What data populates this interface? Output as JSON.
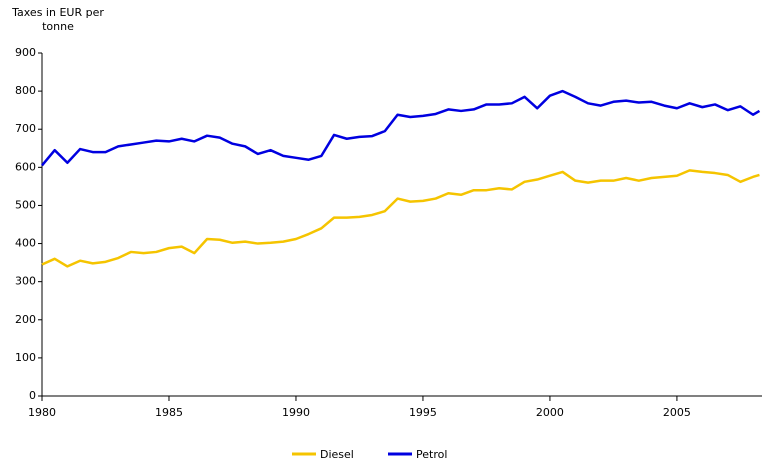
{
  "chart_data": {
    "type": "line",
    "y_label": "Taxes in EUR per tonne",
    "x": [
      1980,
      1980.5,
      1981,
      1981.5,
      1982,
      1982.5,
      1983,
      1983.5,
      1984,
      1984.5,
      1985,
      1985.5,
      1986,
      1986.5,
      1987,
      1987.5,
      1988,
      1988.5,
      1989,
      1989.5,
      1990,
      1990.5,
      1991,
      1991.5,
      1992,
      1992.5,
      1993,
      1993.5,
      1994,
      1994.5,
      1995,
      1995.5,
      1996,
      1996.5,
      1997,
      1997.5,
      1998,
      1998.5,
      1999,
      1999.5,
      2000,
      2000.5,
      2001,
      2001.5,
      2002,
      2002.5,
      2003,
      2003.5,
      2004,
      2004.5,
      2005,
      2005.5,
      2006,
      2006.5,
      2007,
      2007.5,
      2008,
      2008.25
    ],
    "series": [
      {
        "name": "Diesel",
        "color": "#f5c400",
        "values": [
          345,
          360,
          340,
          355,
          348,
          352,
          362,
          378,
          375,
          378,
          388,
          392,
          375,
          412,
          410,
          402,
          405,
          400,
          402,
          405,
          412,
          425,
          440,
          468,
          468,
          470,
          475,
          485,
          518,
          510,
          512,
          518,
          532,
          528,
          540,
          540,
          545,
          542,
          562,
          568,
          578,
          588,
          565,
          560,
          565,
          565,
          572,
          565,
          572,
          575,
          578,
          592,
          588,
          585,
          580,
          562,
          575,
          580
        ]
      },
      {
        "name": "Petrol",
        "color": "#0000e0",
        "values": [
          605,
          645,
          612,
          648,
          640,
          640,
          655,
          660,
          665,
          670,
          668,
          675,
          668,
          683,
          678,
          662,
          655,
          635,
          645,
          630,
          625,
          620,
          630,
          685,
          675,
          680,
          682,
          695,
          738,
          732,
          735,
          740,
          752,
          748,
          752,
          765,
          765,
          768,
          785,
          755,
          788,
          800,
          785,
          768,
          762,
          772,
          775,
          770,
          772,
          762,
          755,
          768,
          758,
          765,
          750,
          760,
          738,
          748
        ]
      }
    ],
    "xlim": [
      1980,
      2008.35
    ],
    "xticks": [
      1980,
      1985,
      1990,
      1995,
      2000,
      2005
    ],
    "ylim": [
      0,
      900
    ],
    "yticks": [
      0,
      100,
      200,
      300,
      400,
      500,
      600,
      700,
      800,
      900
    ],
    "grid": false,
    "legend": "bottom"
  }
}
